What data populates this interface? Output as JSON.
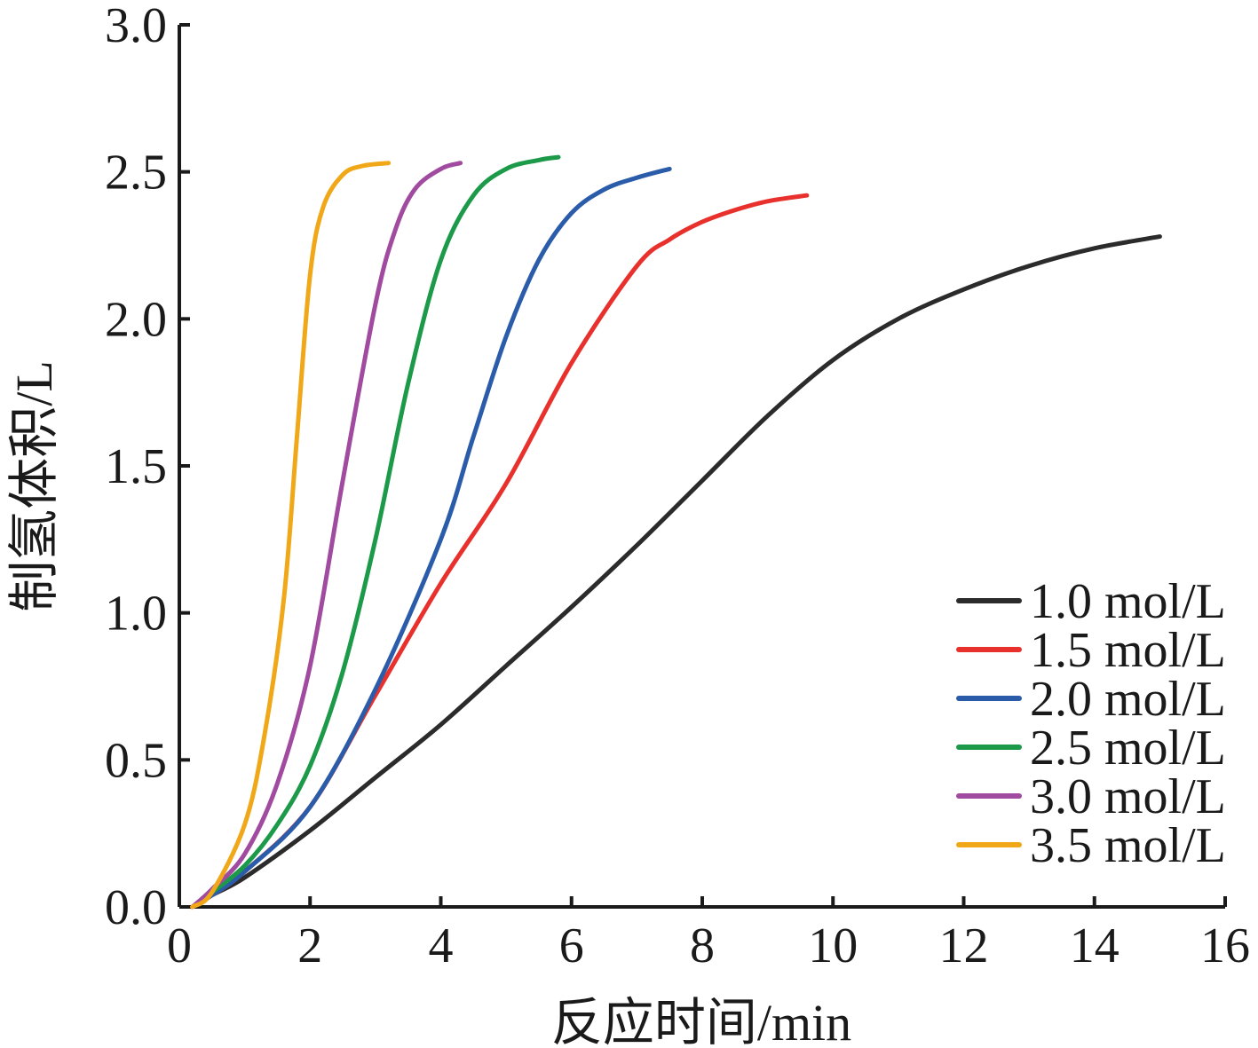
{
  "chart_data": {
    "type": "line",
    "xlabel": "反应时间/min",
    "ylabel": "制氢体积/L",
    "xlim": [
      0,
      16
    ],
    "ylim": [
      0,
      3.0
    ],
    "xticks": [
      "0",
      "2",
      "4",
      "6",
      "8",
      "10",
      "12",
      "14",
      "16"
    ],
    "yticks": [
      "0.0",
      "0.5",
      "1.0",
      "1.5",
      "2.0",
      "2.5",
      "3.0"
    ],
    "grid": false,
    "legend_position": "bottom-right",
    "series": [
      {
        "name": "1.0 mol/L",
        "color": "#2b2b2b",
        "x": [
          0.2,
          0.5,
          1.0,
          2.0,
          3.0,
          4.0,
          5.0,
          6.0,
          7.0,
          8.0,
          9.0,
          10.0,
          11.0,
          12.0,
          13.0,
          14.0,
          15.0
        ],
        "y": [
          0.0,
          0.04,
          0.1,
          0.26,
          0.44,
          0.62,
          0.82,
          1.02,
          1.23,
          1.45,
          1.67,
          1.86,
          2.0,
          2.1,
          2.18,
          2.24,
          2.28
        ]
      },
      {
        "name": "1.5 mol/L",
        "color": "#e8312c",
        "x": [
          0.2,
          0.5,
          1.0,
          2.0,
          3.0,
          4.0,
          5.0,
          6.0,
          7.0,
          7.5,
          8.0,
          8.5,
          9.0,
          9.6
        ],
        "y": [
          0.0,
          0.04,
          0.12,
          0.34,
          0.72,
          1.1,
          1.44,
          1.85,
          2.18,
          2.27,
          2.33,
          2.37,
          2.4,
          2.42
        ]
      },
      {
        "name": "2.0 mol/L",
        "color": "#2a5caa",
        "x": [
          0.2,
          0.5,
          1.0,
          2.0,
          3.0,
          4.0,
          4.5,
          5.0,
          5.5,
          6.0,
          6.5,
          7.0,
          7.5
        ],
        "y": [
          0.0,
          0.04,
          0.12,
          0.34,
          0.74,
          1.25,
          1.6,
          1.94,
          2.2,
          2.36,
          2.44,
          2.48,
          2.51
        ]
      },
      {
        "name": "2.5 mol/L",
        "color": "#1c9a49",
        "x": [
          0.2,
          0.5,
          1.0,
          1.5,
          2.0,
          2.5,
          3.0,
          3.5,
          4.0,
          4.5,
          5.0,
          5.5,
          5.8
        ],
        "y": [
          0.0,
          0.05,
          0.14,
          0.28,
          0.48,
          0.8,
          1.25,
          1.78,
          2.2,
          2.42,
          2.51,
          2.54,
          2.55
        ]
      },
      {
        "name": "3.0 mol/L",
        "color": "#a04aa0",
        "x": [
          0.2,
          0.5,
          1.0,
          1.5,
          2.0,
          2.5,
          3.0,
          3.3,
          3.6,
          4.0,
          4.3
        ],
        "y": [
          0.0,
          0.06,
          0.18,
          0.42,
          0.82,
          1.45,
          2.05,
          2.3,
          2.44,
          2.51,
          2.53
        ]
      },
      {
        "name": "3.5 mol/L",
        "color": "#f0a818",
        "x": [
          0.2,
          0.5,
          1.0,
          1.3,
          1.6,
          1.8,
          2.0,
          2.2,
          2.5,
          2.8,
          3.2
        ],
        "y": [
          0.0,
          0.05,
          0.28,
          0.58,
          1.05,
          1.6,
          2.15,
          2.38,
          2.49,
          2.52,
          2.53
        ]
      }
    ]
  }
}
